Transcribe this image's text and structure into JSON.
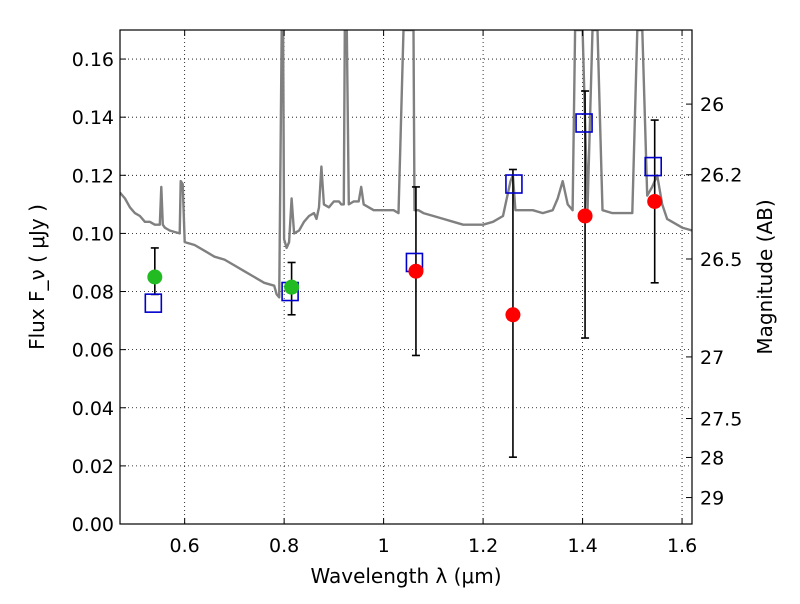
{
  "chart_data": {
    "type": "scatter",
    "title": "",
    "xlabel": "Wavelength  λ (μm)",
    "ylabel": "Flux  F_ν  ( μJy )",
    "y2label": "Magnitude (AB)",
    "xlim": [
      0.47,
      1.62
    ],
    "ylim": [
      0.0,
      0.17
    ],
    "grid": true,
    "x_ticks": [
      0.6,
      0.8,
      1.0,
      1.2,
      1.4,
      1.6
    ],
    "x_tick_labels": [
      "0.6",
      "0.8",
      "1",
      "1.2",
      "1.4",
      "1.6"
    ],
    "y_ticks": [
      0.0,
      0.02,
      0.04,
      0.06,
      0.08,
      0.1,
      0.12,
      0.14,
      0.16
    ],
    "y_tick_labels": [
      "0.00",
      "0.02",
      "0.04",
      "0.06",
      "0.08",
      "0.10",
      "0.12",
      "0.14",
      "0.16"
    ],
    "y2_ticks": [
      {
        "label": "26",
        "flux": 0.1445
      },
      {
        "label": "26.2",
        "flux": 0.1202
      },
      {
        "label": "26.5",
        "flux": 0.0912
      },
      {
        "label": "27",
        "flux": 0.0575
      },
      {
        "label": "27.5",
        "flux": 0.0363
      },
      {
        "label": "28",
        "flux": 0.0229
      },
      {
        "label": "29",
        "flux": 0.0091
      }
    ],
    "colors": {
      "model": "#808080",
      "green_points": "#22bb22",
      "red_points": "#ff0000",
      "squares": "#0000cc",
      "errorbars": "#000000",
      "grid": "#000000"
    },
    "series": [
      {
        "type": "line",
        "points": [
          [
            0.47,
            0.114
          ],
          [
            0.48,
            0.112
          ],
          [
            0.49,
            0.109
          ],
          [
            0.5,
            0.107
          ],
          [
            0.51,
            0.106
          ],
          [
            0.52,
            0.104
          ],
          [
            0.53,
            0.104
          ],
          [
            0.54,
            0.103
          ],
          [
            0.55,
            0.103
          ],
          [
            0.553,
            0.116
          ],
          [
            0.556,
            0.103
          ],
          [
            0.56,
            0.102
          ],
          [
            0.57,
            0.101
          ],
          [
            0.58,
            0.1005
          ],
          [
            0.59,
            0.1
          ],
          [
            0.592,
            0.118
          ],
          [
            0.596,
            0.117
          ],
          [
            0.6,
            0.097
          ],
          [
            0.62,
            0.096
          ],
          [
            0.64,
            0.094
          ],
          [
            0.66,
            0.092
          ],
          [
            0.68,
            0.091
          ],
          [
            0.7,
            0.089
          ],
          [
            0.72,
            0.087
          ],
          [
            0.74,
            0.085
          ],
          [
            0.76,
            0.083
          ],
          [
            0.78,
            0.082
          ],
          [
            0.785,
            0.079
          ],
          [
            0.79,
            0.078
          ],
          [
            0.795,
            0.17
          ],
          [
            0.798,
            0.17
          ],
          [
            0.8,
            0.098
          ],
          [
            0.805,
            0.095
          ],
          [
            0.81,
            0.097
          ],
          [
            0.815,
            0.112
          ],
          [
            0.82,
            0.1
          ],
          [
            0.83,
            0.101
          ],
          [
            0.84,
            0.104
          ],
          [
            0.85,
            0.106
          ],
          [
            0.86,
            0.107
          ],
          [
            0.865,
            0.105
          ],
          [
            0.87,
            0.109
          ],
          [
            0.875,
            0.123
          ],
          [
            0.88,
            0.11
          ],
          [
            0.89,
            0.109
          ],
          [
            0.9,
            0.111
          ],
          [
            0.91,
            0.111
          ],
          [
            0.915,
            0.11
          ],
          [
            0.92,
            0.11
          ],
          [
            0.922,
            0.17
          ],
          [
            0.926,
            0.17
          ],
          [
            0.93,
            0.11
          ],
          [
            0.94,
            0.111
          ],
          [
            0.95,
            0.111
          ],
          [
            0.955,
            0.116
          ],
          [
            0.96,
            0.11
          ],
          [
            0.97,
            0.109
          ],
          [
            0.98,
            0.108
          ],
          [
            1.0,
            0.108
          ],
          [
            1.02,
            0.108
          ],
          [
            1.03,
            0.107
          ],
          [
            1.04,
            0.17
          ],
          [
            1.06,
            0.17
          ],
          [
            1.062,
            0.108
          ],
          [
            1.07,
            0.108
          ],
          [
            1.08,
            0.107
          ],
          [
            1.1,
            0.106
          ],
          [
            1.12,
            0.105
          ],
          [
            1.14,
            0.104
          ],
          [
            1.16,
            0.103
          ],
          [
            1.18,
            0.103
          ],
          [
            1.2,
            0.103
          ],
          [
            1.22,
            0.104
          ],
          [
            1.24,
            0.106
          ],
          [
            1.255,
            0.118
          ],
          [
            1.26,
            0.12
          ],
          [
            1.265,
            0.108
          ],
          [
            1.28,
            0.108
          ],
          [
            1.3,
            0.108
          ],
          [
            1.32,
            0.107
          ],
          [
            1.34,
            0.108
          ],
          [
            1.35,
            0.112
          ],
          [
            1.36,
            0.118
          ],
          [
            1.37,
            0.11
          ],
          [
            1.38,
            0.108
          ],
          [
            1.385,
            0.17
          ],
          [
            1.4,
            0.17
          ],
          [
            1.41,
            0.108
          ],
          [
            1.42,
            0.17
          ],
          [
            1.43,
            0.17
          ],
          [
            1.44,
            0.108
          ],
          [
            1.46,
            0.107
          ],
          [
            1.48,
            0.107
          ],
          [
            1.5,
            0.107
          ],
          [
            1.51,
            0.17
          ],
          [
            1.52,
            0.17
          ],
          [
            1.53,
            0.113
          ],
          [
            1.54,
            0.116
          ],
          [
            1.55,
            0.12
          ],
          [
            1.56,
            0.11
          ],
          [
            1.57,
            0.105
          ],
          [
            1.58,
            0.104
          ],
          [
            1.6,
            0.102
          ],
          [
            1.62,
            0.101
          ]
        ]
      },
      {
        "type": "circles_green",
        "points": [
          {
            "x": 0.54,
            "y": 0.085,
            "ylo": 0.079,
            "yhi": 0.095
          },
          {
            "x": 0.815,
            "y": 0.0815,
            "ylo": 0.072,
            "yhi": 0.09
          }
        ]
      },
      {
        "type": "circles_red",
        "points": [
          {
            "x": 1.065,
            "y": 0.087,
            "ylo": 0.058,
            "yhi": 0.116
          },
          {
            "x": 1.26,
            "y": 0.072,
            "ylo": 0.023,
            "yhi": 0.122
          },
          {
            "x": 1.405,
            "y": 0.106,
            "ylo": 0.064,
            "yhi": 0.149
          },
          {
            "x": 1.545,
            "y": 0.111,
            "ylo": 0.083,
            "yhi": 0.139
          }
        ]
      },
      {
        "type": "squares",
        "points": [
          {
            "x": 0.537,
            "y": 0.076
          },
          {
            "x": 0.812,
            "y": 0.08
          },
          {
            "x": 1.062,
            "y": 0.09
          },
          {
            "x": 1.262,
            "y": 0.117
          },
          {
            "x": 1.403,
            "y": 0.138
          },
          {
            "x": 1.542,
            "y": 0.123
          }
        ]
      }
    ]
  }
}
